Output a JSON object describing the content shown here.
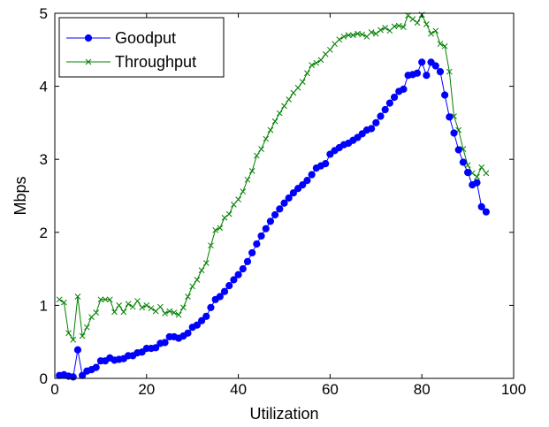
{
  "chart_data": {
    "type": "line",
    "xlabel": "Utilization",
    "ylabel": "Mbps",
    "xlim": [
      0,
      100
    ],
    "ylim": [
      0,
      5
    ],
    "xticks": [
      0,
      20,
      40,
      60,
      80,
      100
    ],
    "yticks": [
      0,
      1,
      2,
      3,
      4,
      5
    ],
    "grid": false,
    "legend_position": "top-left",
    "series": [
      {
        "name": "Goodput",
        "color": "#0000ff",
        "marker": "circle",
        "points": [
          [
            1,
            0.04
          ],
          [
            2,
            0.05
          ],
          [
            3,
            0.03
          ],
          [
            4,
            0.02
          ],
          [
            5,
            0.39
          ],
          [
            6,
            0.04
          ],
          [
            7,
            0.1
          ],
          [
            8,
            0.12
          ],
          [
            9,
            0.15
          ],
          [
            10,
            0.24
          ],
          [
            11,
            0.24
          ],
          [
            12,
            0.28
          ],
          [
            13,
            0.25
          ],
          [
            14,
            0.26
          ],
          [
            15,
            0.27
          ],
          [
            16,
            0.31
          ],
          [
            17,
            0.31
          ],
          [
            18,
            0.35
          ],
          [
            19,
            0.36
          ],
          [
            20,
            0.41
          ],
          [
            21,
            0.41
          ],
          [
            22,
            0.42
          ],
          [
            23,
            0.48
          ],
          [
            24,
            0.49
          ],
          [
            25,
            0.57
          ],
          [
            26,
            0.57
          ],
          [
            27,
            0.55
          ],
          [
            28,
            0.58
          ],
          [
            29,
            0.62
          ],
          [
            30,
            0.7
          ],
          [
            31,
            0.73
          ],
          [
            32,
            0.79
          ],
          [
            33,
            0.85
          ],
          [
            34,
            0.97
          ],
          [
            35,
            1.08
          ],
          [
            36,
            1.12
          ],
          [
            37,
            1.19
          ],
          [
            38,
            1.27
          ],
          [
            39,
            1.35
          ],
          [
            40,
            1.42
          ],
          [
            41,
            1.5
          ],
          [
            42,
            1.6
          ],
          [
            43,
            1.72
          ],
          [
            44,
            1.84
          ],
          [
            45,
            1.95
          ],
          [
            46,
            2.05
          ],
          [
            47,
            2.15
          ],
          [
            48,
            2.24
          ],
          [
            49,
            2.32
          ],
          [
            50,
            2.4
          ],
          [
            51,
            2.47
          ],
          [
            52,
            2.54
          ],
          [
            53,
            2.6
          ],
          [
            54,
            2.65
          ],
          [
            55,
            2.71
          ],
          [
            56,
            2.79
          ],
          [
            57,
            2.88
          ],
          [
            58,
            2.91
          ],
          [
            59,
            2.94
          ],
          [
            60,
            3.07
          ],
          [
            61,
            3.12
          ],
          [
            62,
            3.16
          ],
          [
            63,
            3.2
          ],
          [
            64,
            3.22
          ],
          [
            65,
            3.26
          ],
          [
            66,
            3.3
          ],
          [
            67,
            3.35
          ],
          [
            68,
            3.4
          ],
          [
            69,
            3.42
          ],
          [
            70,
            3.5
          ],
          [
            71,
            3.59
          ],
          [
            72,
            3.68
          ],
          [
            73,
            3.77
          ],
          [
            74,
            3.85
          ],
          [
            75,
            3.93
          ],
          [
            76,
            3.96
          ],
          [
            77,
            4.15
          ],
          [
            78,
            4.16
          ],
          [
            79,
            4.18
          ],
          [
            80,
            4.33
          ],
          [
            81,
            4.15
          ],
          [
            82,
            4.33
          ],
          [
            83,
            4.28
          ],
          [
            84,
            4.2
          ],
          [
            85,
            3.88
          ],
          [
            86,
            3.58
          ],
          [
            87,
            3.36
          ],
          [
            88,
            3.13
          ],
          [
            89,
            2.96
          ],
          [
            90,
            2.82
          ],
          [
            91,
            2.65
          ],
          [
            92,
            2.68
          ],
          [
            93,
            2.35
          ],
          [
            94,
            2.28
          ]
        ]
      },
      {
        "name": "Throughput",
        "color": "#008000",
        "marker": "x",
        "points": [
          [
            1,
            1.08
          ],
          [
            2,
            1.04
          ],
          [
            3,
            0.62
          ],
          [
            4,
            0.53
          ],
          [
            5,
            1.12
          ],
          [
            6,
            0.58
          ],
          [
            7,
            0.7
          ],
          [
            8,
            0.84
          ],
          [
            9,
            0.9
          ],
          [
            10,
            1.08
          ],
          [
            11,
            1.08
          ],
          [
            12,
            1.08
          ],
          [
            13,
            0.91
          ],
          [
            14,
            1.0
          ],
          [
            15,
            0.91
          ],
          [
            16,
            1.02
          ],
          [
            17,
            0.98
          ],
          [
            18,
            1.06
          ],
          [
            19,
            0.97
          ],
          [
            20,
            1.0
          ],
          [
            21,
            0.96
          ],
          [
            22,
            0.92
          ],
          [
            23,
            0.98
          ],
          [
            24,
            0.89
          ],
          [
            25,
            0.92
          ],
          [
            26,
            0.9
          ],
          [
            27,
            0.87
          ],
          [
            28,
            0.97
          ],
          [
            29,
            1.12
          ],
          [
            30,
            1.26
          ],
          [
            31,
            1.35
          ],
          [
            32,
            1.48
          ],
          [
            33,
            1.58
          ],
          [
            34,
            1.82
          ],
          [
            35,
            2.03
          ],
          [
            36,
            2.06
          ],
          [
            37,
            2.2
          ],
          [
            38,
            2.25
          ],
          [
            39,
            2.38
          ],
          [
            40,
            2.45
          ],
          [
            41,
            2.56
          ],
          [
            42,
            2.72
          ],
          [
            43,
            2.84
          ],
          [
            44,
            3.05
          ],
          [
            45,
            3.14
          ],
          [
            46,
            3.28
          ],
          [
            47,
            3.4
          ],
          [
            48,
            3.52
          ],
          [
            49,
            3.63
          ],
          [
            50,
            3.73
          ],
          [
            51,
            3.82
          ],
          [
            52,
            3.91
          ],
          [
            53,
            3.98
          ],
          [
            54,
            4.06
          ],
          [
            55,
            4.18
          ],
          [
            56,
            4.29
          ],
          [
            57,
            4.32
          ],
          [
            58,
            4.36
          ],
          [
            59,
            4.44
          ],
          [
            60,
            4.5
          ],
          [
            61,
            4.58
          ],
          [
            62,
            4.64
          ],
          [
            63,
            4.68
          ],
          [
            64,
            4.7
          ],
          [
            65,
            4.7
          ],
          [
            66,
            4.72
          ],
          [
            67,
            4.71
          ],
          [
            68,
            4.68
          ],
          [
            69,
            4.74
          ],
          [
            70,
            4.72
          ],
          [
            71,
            4.77
          ],
          [
            72,
            4.8
          ],
          [
            73,
            4.76
          ],
          [
            74,
            4.82
          ],
          [
            75,
            4.83
          ],
          [
            76,
            4.81
          ],
          [
            77,
            4.97
          ],
          [
            78,
            4.92
          ],
          [
            79,
            4.87
          ],
          [
            80,
            4.98
          ],
          [
            81,
            4.85
          ],
          [
            82,
            4.72
          ],
          [
            83,
            4.76
          ],
          [
            84,
            4.58
          ],
          [
            85,
            4.55
          ],
          [
            86,
            4.2
          ],
          [
            87,
            3.59
          ],
          [
            88,
            3.4
          ],
          [
            89,
            3.14
          ],
          [
            90,
            2.92
          ],
          [
            91,
            2.81
          ],
          [
            92,
            2.76
          ],
          [
            93,
            2.89
          ],
          [
            94,
            2.81
          ]
        ]
      }
    ]
  }
}
